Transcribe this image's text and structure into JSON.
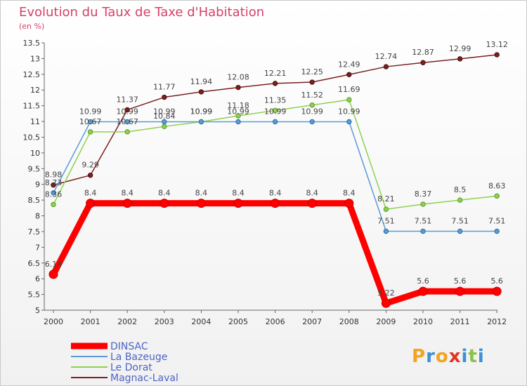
{
  "chart_data": {
    "type": "line",
    "title": "Evolution du Taux de Taxe d'Habitation",
    "subtitle": "(en %)",
    "categories": [
      "2000",
      "2001",
      "2002",
      "2003",
      "2004",
      "2005",
      "2006",
      "2007",
      "2008",
      "2009",
      "2010",
      "2011",
      "2012"
    ],
    "ylim": [
      5,
      13.5
    ],
    "yticks": [
      "5",
      "5.5",
      "6",
      "6.5",
      "7",
      "7.5",
      "8",
      "8.5",
      "9",
      "9.5",
      "10",
      "10.5",
      "11",
      "11.5",
      "12",
      "12.5",
      "13",
      "13.5"
    ],
    "grid": false,
    "legend_position": "bottom-left",
    "series": [
      {
        "name": "DINSAC",
        "color": "#ff0000",
        "values": [
          6.14,
          8.4,
          8.4,
          8.4,
          8.4,
          8.4,
          8.4,
          8.4,
          8.4,
          5.22,
          5.6,
          5.6,
          5.6
        ],
        "labels": [
          "6.14",
          "8.4",
          "8.4",
          "8.4",
          "8.4",
          "8.4",
          "8.4",
          "8.4",
          "8.4",
          "5.22",
          "5.6",
          "5.6",
          "5.6"
        ]
      },
      {
        "name": "La Bazeuge",
        "color": "#5b9bd5",
        "values": [
          8.73,
          10.99,
          10.99,
          10.99,
          10.99,
          10.99,
          10.99,
          10.99,
          10.99,
          7.51,
          7.51,
          7.51,
          7.51
        ],
        "labels": [
          "8.73",
          "10.99",
          "10.99",
          "10.99",
          "10.99",
          "10.99",
          "10.99",
          "10.99",
          "10.99",
          "7.51",
          "7.51",
          "7.51",
          "7.51"
        ]
      },
      {
        "name": "Le Dorat",
        "color": "#8fd14f",
        "values": [
          8.36,
          10.67,
          10.67,
          10.84,
          10.99,
          11.18,
          11.35,
          11.52,
          11.69,
          8.21,
          8.37,
          8.5,
          8.63
        ],
        "labels": [
          "8.36",
          "10.67",
          "10.67",
          "10.84",
          "10.99",
          "11.18",
          "11.35",
          "11.52",
          "11.69",
          "8.21",
          "8.37",
          "8.5",
          "8.63"
        ]
      },
      {
        "name": "Magnac-Laval",
        "color": "#7b2020",
        "values": [
          8.98,
          9.29,
          11.37,
          11.77,
          11.94,
          12.08,
          12.21,
          12.25,
          12.49,
          12.74,
          12.87,
          12.99,
          13.12
        ],
        "labels": [
          "8.98",
          "9.29",
          "11.37",
          "11.77",
          "11.94",
          "12.08",
          "12.21",
          "12.25",
          "12.49",
          "12.74",
          "12.87",
          "12.99",
          "13.12"
        ]
      }
    ]
  },
  "logo": {
    "letters": [
      "P",
      "r",
      "o",
      "x",
      "i",
      "t",
      "i"
    ]
  }
}
